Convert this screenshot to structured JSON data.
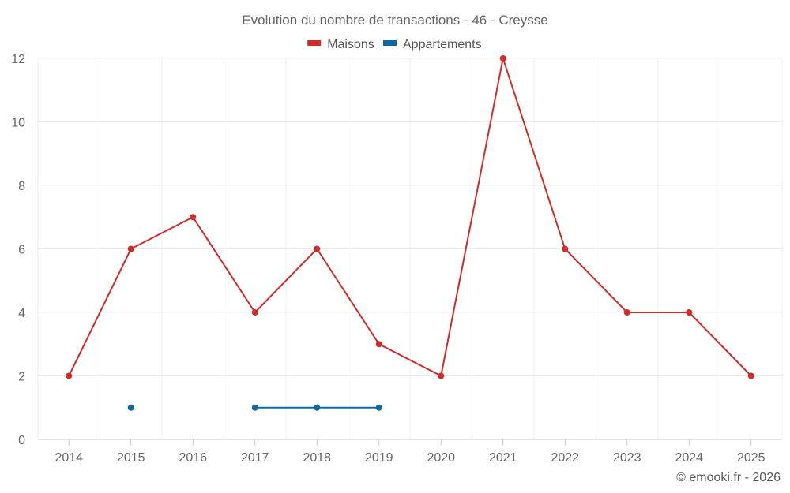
{
  "chart_data": {
    "type": "line",
    "title": "Evolution du nombre de transactions - 46 - Creysse",
    "xlabel": "",
    "ylabel": "",
    "categories": [
      "2014",
      "2015",
      "2016",
      "2017",
      "2018",
      "2019",
      "2020",
      "2021",
      "2022",
      "2023",
      "2024",
      "2025"
    ],
    "ylim": [
      0,
      12
    ],
    "yticks": [
      0,
      2,
      4,
      6,
      8,
      10,
      12
    ],
    "legend_position": "top-center",
    "grid": true,
    "series": [
      {
        "name": "Maisons",
        "color": "#d32a2a",
        "values": [
          2,
          6,
          7,
          4,
          6,
          3,
          2,
          12,
          6,
          4,
          4,
          2
        ]
      },
      {
        "name": "Appartements",
        "color": "#0d6aa0",
        "values": [
          null,
          1,
          null,
          1,
          1,
          1,
          null,
          null,
          null,
          null,
          null,
          null
        ]
      }
    ]
  },
  "credit": "© emooki.fr - 2026"
}
